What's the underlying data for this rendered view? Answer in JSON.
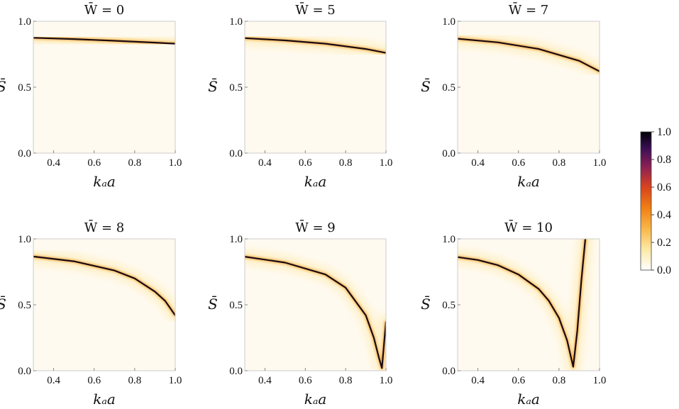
{
  "chart_data": [
    {
      "type": "heatmap",
      "title": "W̄ = 0",
      "xlabel": "kₐa",
      "ylabel": "S̄",
      "xlim": [
        0.3,
        1.0
      ],
      "ylim": [
        0.0,
        1.0
      ],
      "x_ticks": [
        "0.4",
        "0.6",
        "0.8",
        "1.0"
      ],
      "y_ticks": [
        "0.0",
        "0.5",
        "1.0"
      ],
      "ridge": [
        [
          0.3,
          0.875
        ],
        [
          0.5,
          0.865
        ],
        [
          0.7,
          0.852
        ],
        [
          0.9,
          0.838
        ],
        [
          1.0,
          0.83
        ]
      ]
    },
    {
      "type": "heatmap",
      "title": "W̄ = 5",
      "xlabel": "kₐa",
      "ylabel": "S̄",
      "xlim": [
        0.3,
        1.0
      ],
      "ylim": [
        0.0,
        1.0
      ],
      "x_ticks": [
        "0.4",
        "0.6",
        "0.8",
        "1.0"
      ],
      "y_ticks": [
        "0.0",
        "0.5",
        "1.0"
      ],
      "ridge": [
        [
          0.3,
          0.872
        ],
        [
          0.5,
          0.855
        ],
        [
          0.7,
          0.83
        ],
        [
          0.9,
          0.79
        ],
        [
          1.0,
          0.76
        ]
      ]
    },
    {
      "type": "heatmap",
      "title": "W̄ = 7",
      "xlabel": "kₐa",
      "ylabel": "S̄",
      "xlim": [
        0.3,
        1.0
      ],
      "ylim": [
        0.0,
        1.0
      ],
      "x_ticks": [
        "0.4",
        "0.6",
        "0.8",
        "1.0"
      ],
      "y_ticks": [
        "0.0",
        "0.5",
        "1.0"
      ],
      "ridge": [
        [
          0.3,
          0.868
        ],
        [
          0.5,
          0.84
        ],
        [
          0.7,
          0.79
        ],
        [
          0.9,
          0.7
        ],
        [
          1.0,
          0.62
        ]
      ]
    },
    {
      "type": "heatmap",
      "title": "W̄ = 8",
      "xlabel": "kₐa",
      "ylabel": "S̄",
      "xlim": [
        0.3,
        1.0
      ],
      "ylim": [
        0.0,
        1.0
      ],
      "x_ticks": [
        "0.4",
        "0.6",
        "0.8",
        "1.0"
      ],
      "y_ticks": [
        "0.0",
        "0.5",
        "1.0"
      ],
      "ridge": [
        [
          0.3,
          0.866
        ],
        [
          0.5,
          0.83
        ],
        [
          0.7,
          0.76
        ],
        [
          0.8,
          0.7
        ],
        [
          0.9,
          0.6
        ],
        [
          0.95,
          0.53
        ],
        [
          1.0,
          0.42
        ]
      ]
    },
    {
      "type": "heatmap",
      "title": "W̄ = 9",
      "xlabel": "kₐa",
      "ylabel": "S̄",
      "xlim": [
        0.3,
        1.0
      ],
      "ylim": [
        0.0,
        1.0
      ],
      "x_ticks": [
        "0.4",
        "0.6",
        "0.8",
        "1.0"
      ],
      "y_ticks": [
        "0.0",
        "0.5",
        "1.0"
      ],
      "ridge": [
        [
          0.3,
          0.865
        ],
        [
          0.5,
          0.82
        ],
        [
          0.7,
          0.73
        ],
        [
          0.8,
          0.63
        ],
        [
          0.9,
          0.42
        ],
        [
          0.94,
          0.25
        ],
        [
          0.965,
          0.1
        ],
        [
          0.98,
          0.02
        ],
        [
          0.99,
          0.2
        ],
        [
          1.0,
          0.37
        ]
      ]
    },
    {
      "type": "heatmap",
      "title": "W̄ = 10",
      "xlabel": "kₐa",
      "ylabel": "S̄",
      "xlim": [
        0.3,
        1.0
      ],
      "ylim": [
        0.0,
        1.0
      ],
      "x_ticks": [
        "0.4",
        "0.6",
        "0.8",
        "1.0"
      ],
      "y_ticks": [
        "0.0",
        "0.5",
        "1.0"
      ],
      "ridge": [
        [
          0.3,
          0.862
        ],
        [
          0.4,
          0.84
        ],
        [
          0.5,
          0.8
        ],
        [
          0.6,
          0.73
        ],
        [
          0.7,
          0.62
        ],
        [
          0.75,
          0.53
        ],
        [
          0.8,
          0.4
        ],
        [
          0.84,
          0.23
        ],
        [
          0.87,
          0.03
        ],
        [
          0.89,
          0.3
        ],
        [
          0.91,
          0.68
        ],
        [
          0.93,
          1.0
        ]
      ]
    }
  ],
  "colorbar": {
    "ticks": [
      "1.0",
      "0.8",
      "0.6",
      "0.4",
      "0.2",
      "0.0"
    ],
    "range": [
      0.0,
      1.0
    ],
    "colormap": [
      "#ffffff",
      "#fde9a5",
      "#f9b649",
      "#f07f14",
      "#d9431e",
      "#8a1f55",
      "#3b0f55",
      "#000004"
    ]
  }
}
